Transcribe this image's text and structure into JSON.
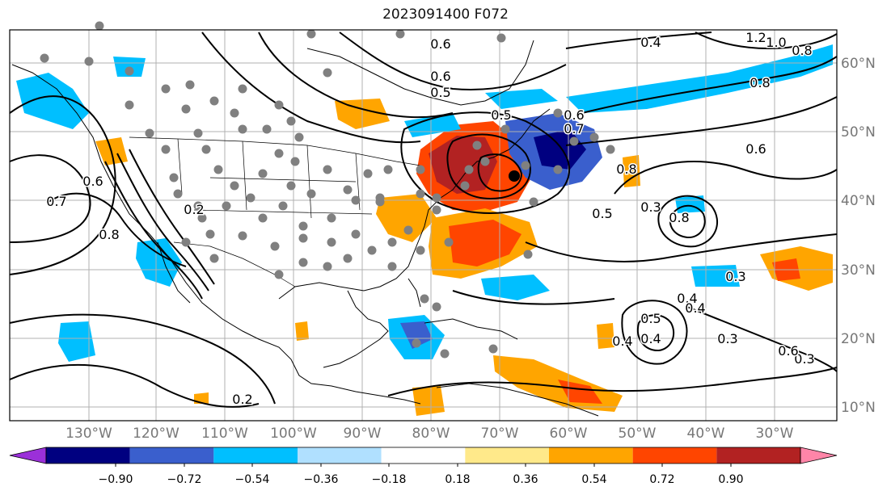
{
  "title": "2023091400 F072",
  "map": {
    "lon_labels": [
      "130°W",
      "120°W",
      "110°W",
      "100°W",
      "90°W",
      "80°W",
      "70°W",
      "60°W",
      "50°W",
      "40°W",
      "30°W"
    ],
    "lat_labels": [
      "60°N",
      "50°N",
      "40°N",
      "30°N",
      "20°N",
      "10°N"
    ],
    "contour_labels": [
      "0.6",
      "0.4",
      "1.2",
      "1.0",
      "0.8",
      "0.8",
      "0.6",
      "0.5",
      "0.6",
      "0.7",
      "0.6",
      "0.7",
      "0.5",
      "0.8",
      "0.6",
      "0.2",
      "0.8",
      "0.3",
      "0.2",
      "0.3",
      "0.5",
      "0.4",
      "0.3",
      "0.4",
      "0.3",
      "0.4",
      "0.5",
      "0.6",
      "0.4",
      "0.8"
    ],
    "colors": {
      "land_line": "#000000",
      "grid": "#b0b0b0",
      "dots": "#808080"
    }
  },
  "colorbar": {
    "labels": [
      "−0.90",
      "−0.72",
      "−0.54",
      "−0.36",
      "−0.18",
      "0.18",
      "0.36",
      "0.54",
      "0.72",
      "0.90"
    ],
    "colors": [
      "#9b30d9",
      "#000080",
      "#3a5fcd",
      "#00bfff",
      "#b0e0ff",
      "#ffffff",
      "#ffe98a",
      "#ffa500",
      "#ff4500",
      "#b22222",
      "#ff85a8"
    ]
  }
}
